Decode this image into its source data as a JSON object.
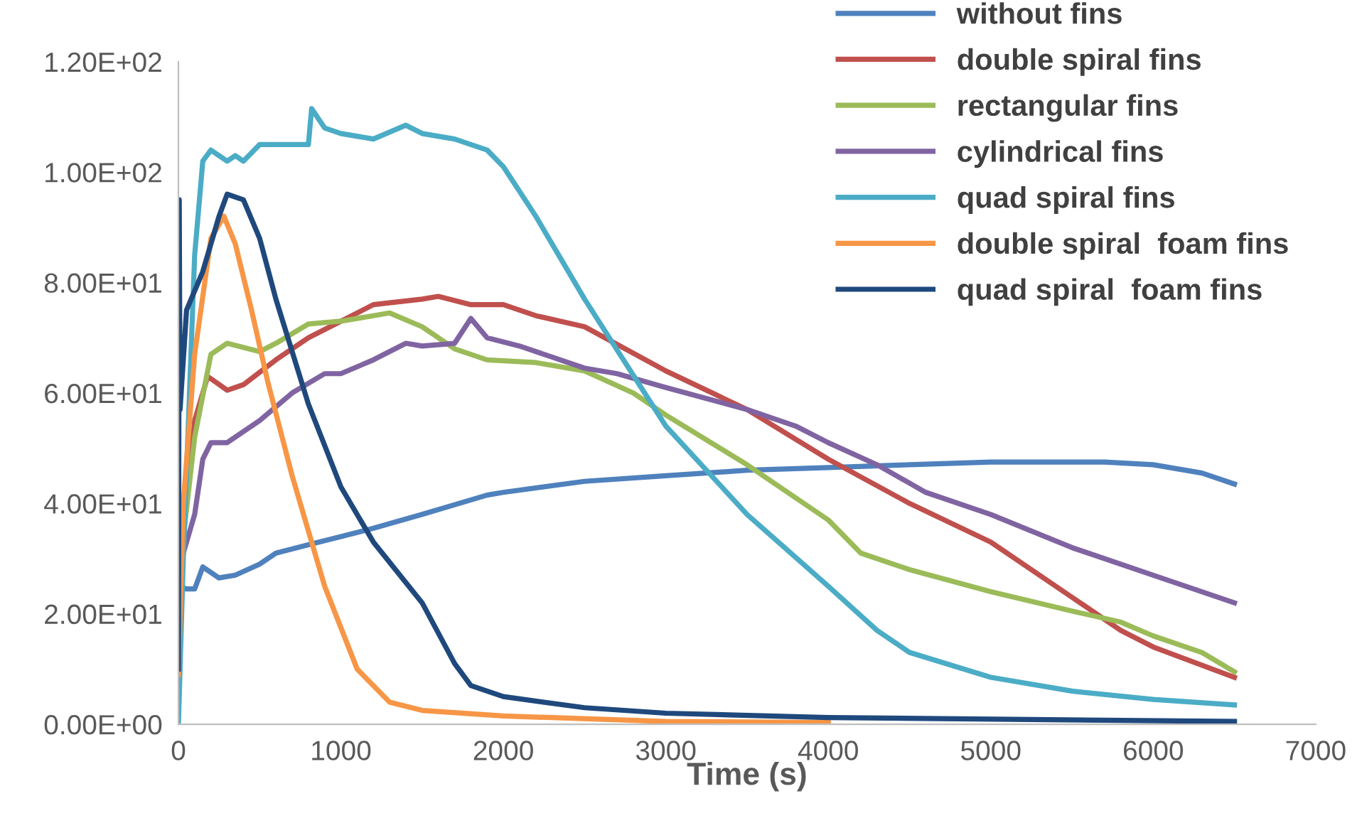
{
  "chart_data": {
    "type": "line",
    "xlabel": "Time (s)",
    "xlim": [
      0,
      7000
    ],
    "xticks": [
      0,
      1000,
      2000,
      3000,
      4000,
      5000,
      6000,
      7000
    ],
    "ylim": [
      0,
      120
    ],
    "yticks": [
      {
        "value": 0,
        "label": "0.00E+00"
      },
      {
        "value": 20,
        "label": "2.00E+01"
      },
      {
        "value": 40,
        "label": "4.00E+01"
      },
      {
        "value": 60,
        "label": "6.00E+01"
      },
      {
        "value": 80,
        "label": "8.00E+01"
      },
      {
        "value": 100,
        "label": "1.00E+02"
      },
      {
        "value": 120,
        "label": "1.20E+02"
      }
    ],
    "grid": false,
    "legend": "top right",
    "marker": "none",
    "line_style": "solid",
    "series": [
      {
        "name": "without fins",
        "color": "#4f81bd",
        "x": [
          0,
          50,
          100,
          150,
          250,
          350,
          500,
          600,
          800,
          1000,
          1200,
          1500,
          1900,
          2000,
          2500,
          3000,
          3500,
          4000,
          4500,
          5000,
          5500,
          5700,
          6000,
          6300,
          6500
        ],
        "values": [
          25,
          24.5,
          24.5,
          28.5,
          26.5,
          27,
          29,
          31,
          32.5,
          34,
          35.5,
          38,
          41.5,
          42,
          44,
          45,
          46,
          46.5,
          47,
          47.5,
          47.5,
          47.5,
          47,
          45.5,
          43.5
        ]
      },
      {
        "name": "double spiral fins",
        "color": "#c0504d",
        "x": [
          0,
          100,
          180,
          300,
          400,
          600,
          800,
          1000,
          1200,
          1500,
          1600,
          1800,
          2000,
          2200,
          2500,
          3000,
          3500,
          4000,
          4500,
          5000,
          5500,
          5800,
          6000,
          6500
        ],
        "values": [
          25,
          55,
          63,
          60.5,
          61.5,
          66,
          70,
          73,
          76,
          77,
          77.5,
          76,
          76,
          74,
          72,
          64,
          57,
          48,
          40,
          33,
          23,
          17,
          14,
          8.5
        ]
      },
      {
        "name": "rectangular fins",
        "color": "#9bbb59",
        "x": [
          0,
          100,
          200,
          300,
          500,
          600,
          800,
          1000,
          1200,
          1300,
          1500,
          1700,
          1900,
          2200,
          2500,
          2800,
          3000,
          3500,
          4000,
          4200,
          4500,
          5000,
          5500,
          5800,
          6000,
          6300,
          6500
        ],
        "values": [
          26,
          52,
          67,
          69,
          67.5,
          69,
          72.5,
          73,
          74,
          74.5,
          72,
          68,
          66,
          65.5,
          64,
          60,
          56,
          47,
          37,
          31,
          28,
          24,
          20.5,
          18.5,
          16,
          13,
          9.5
        ]
      },
      {
        "name": "cylindrical fins",
        "color": "#8064a2",
        "x": [
          0,
          100,
          150,
          200,
          300,
          500,
          700,
          900,
          1000,
          1200,
          1400,
          1500,
          1700,
          1800,
          1900,
          2100,
          2300,
          2500,
          2700,
          3000,
          3500,
          3800,
          4000,
          4300,
          4600,
          5000,
          5500,
          6000,
          6500
        ],
        "values": [
          28,
          38,
          48,
          51,
          51,
          55,
          60,
          63.5,
          63.5,
          66,
          69,
          68.5,
          69,
          73.5,
          70,
          68.5,
          66.5,
          64.5,
          63.5,
          61,
          57,
          54,
          51,
          47,
          42,
          38,
          32,
          27,
          22
        ]
      },
      {
        "name": "quad spiral fins",
        "color": "#4bacc6",
        "x": [
          0,
          30,
          100,
          150,
          200,
          300,
          350,
          400,
          500,
          800,
          820,
          900,
          1000,
          1200,
          1400,
          1500,
          1700,
          1900,
          2000,
          2200,
          2500,
          3000,
          3500,
          4000,
          4300,
          4500,
          5000,
          5500,
          6000,
          6500
        ],
        "values": [
          0,
          30,
          85,
          102,
          104,
          102,
          103,
          102,
          105,
          105,
          111.5,
          108,
          107,
          106,
          108.5,
          107,
          106,
          104,
          101,
          92,
          77,
          54,
          38,
          25,
          17,
          13,
          8.5,
          6,
          4.5,
          3.5
        ]
      },
      {
        "name": "double spiral  foam fins",
        "color": "#f79646",
        "x": [
          0,
          30,
          100,
          200,
          280,
          350,
          450,
          550,
          700,
          900,
          1100,
          1300,
          1500,
          2000,
          3000,
          4000
        ],
        "values": [
          9,
          40,
          67,
          88,
          92,
          87,
          75,
          62,
          45,
          25,
          10,
          4,
          2.5,
          1.5,
          0.5,
          0.3
        ]
      },
      {
        "name": "quad spiral  foam fins",
        "color": "#1f497d",
        "x": [
          0,
          5,
          10,
          50,
          150,
          250,
          300,
          400,
          500,
          600,
          800,
          1000,
          1200,
          1500,
          1700,
          1800,
          2000,
          2500,
          3000,
          4000,
          6500
        ],
        "values": [
          10,
          95,
          57,
          75,
          82,
          92,
          96,
          95,
          88,
          77,
          58,
          43,
          33,
          22,
          11,
          7,
          5,
          3,
          2,
          1.2,
          0.5
        ]
      }
    ]
  }
}
